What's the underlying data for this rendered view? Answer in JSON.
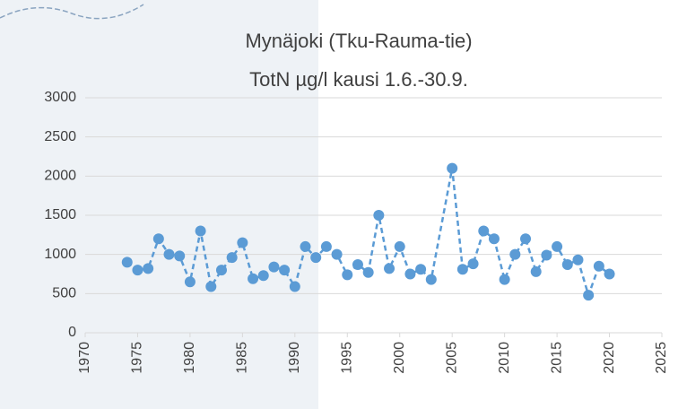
{
  "chart_data": {
    "type": "line",
    "title": "Mynäjoki (Tku-Rauma-tie)",
    "subtitle": "TotN µg/l kausi 1.6.-30.9.",
    "x": [
      1974,
      1975,
      1976,
      1977,
      1978,
      1979,
      1980,
      1981,
      1982,
      1983,
      1984,
      1985,
      1986,
      1987,
      1988,
      1989,
      1990,
      1991,
      1992,
      1993,
      1994,
      1995,
      1996,
      1997,
      1998,
      1999,
      2000,
      2001,
      2002,
      2003,
      2005,
      2006,
      2007,
      2008,
      2009,
      2010,
      2011,
      2012,
      2013,
      2014,
      2015,
      2016,
      2017,
      2018,
      2019,
      2020
    ],
    "series": [
      {
        "color": "#5b9bd5",
        "values": [
          900,
          800,
          820,
          1200,
          1000,
          980,
          650,
          1300,
          590,
          800,
          960,
          1150,
          690,
          730,
          840,
          800,
          590,
          1100,
          960,
          1100,
          1000,
          740,
          870,
          770,
          1500,
          820,
          1100,
          750,
          810,
          680,
          2100,
          810,
          880,
          1300,
          1200,
          680,
          1000,
          1200,
          780,
          990,
          1100,
          870,
          930,
          480,
          850,
          750
        ]
      }
    ],
    "xlim": [
      1970,
      2025
    ],
    "xticks": [
      1970,
      1975,
      1980,
      1985,
      1990,
      1995,
      2000,
      2005,
      2010,
      2015,
      2020,
      2025
    ],
    "ylim": [
      0,
      3000
    ],
    "yticks": [
      0,
      500,
      1000,
      1500,
      2000,
      2500,
      3000
    ],
    "grid": true
  }
}
